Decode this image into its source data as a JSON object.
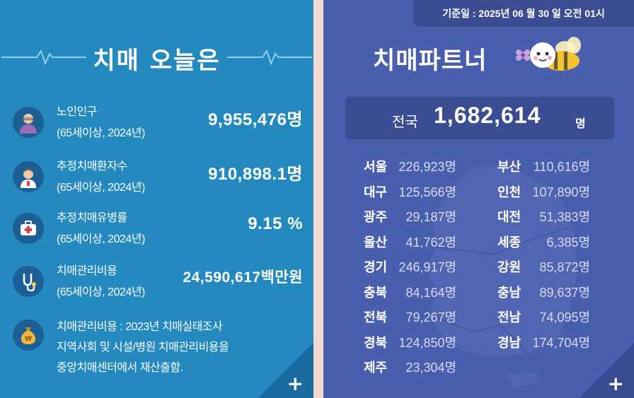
{
  "left": {
    "title": "치매 오늘은",
    "stats": [
      {
        "label": "노인인구",
        "sub": "(65세이상, 2024년)",
        "value": "9,955,476명",
        "icon": "elderly-person-icon"
      },
      {
        "label": "추정치매환자수",
        "sub": "(65세이상, 2024년)",
        "value": "910,898.1명",
        "icon": "patient-icon"
      },
      {
        "label": "추정치매유병률",
        "sub": "(65세이상, 2024년)",
        "value": "9.15 %",
        "icon": "medical-kit-icon"
      },
      {
        "label": "치매관리비용",
        "sub": "(65세이상, 2024년)",
        "value": "24,590,617백만원",
        "icon": "stethoscope-icon"
      }
    ],
    "note": {
      "line1": "치매관리비용 : 2023년 치매실태조사",
      "line2": "지역사회 및 시설/병원 치매관리비용을",
      "line3": "중앙치매센터에서 재산출함.",
      "icon": "money-bag-icon"
    },
    "more": "+"
  },
  "right": {
    "date": "기준일 : 2025년 06 월 30 일 오전 01시",
    "title": "치매파트너",
    "total": {
      "label": "전국",
      "value": "1,682,614",
      "unit": "명"
    },
    "regions_left": [
      {
        "name": "서울",
        "value": "226,923명"
      },
      {
        "name": "대구",
        "value": "125,566명"
      },
      {
        "name": "광주",
        "value": "29,187명"
      },
      {
        "name": "울산",
        "value": "41,762명"
      },
      {
        "name": "경기",
        "value": "246,917명"
      },
      {
        "name": "충북",
        "value": "84,164명"
      },
      {
        "name": "전북",
        "value": "79,267명"
      },
      {
        "name": "경북",
        "value": "124,850명"
      },
      {
        "name": "제주",
        "value": "23,304명"
      }
    ],
    "regions_right": [
      {
        "name": "부산",
        "value": "110,616명"
      },
      {
        "name": "인천",
        "value": "107,890명"
      },
      {
        "name": "대전",
        "value": "51,383명"
      },
      {
        "name": "세종",
        "value": "6,385명"
      },
      {
        "name": "강원",
        "value": "85,872명"
      },
      {
        "name": "충남",
        "value": "89,637명"
      },
      {
        "name": "전남",
        "value": "74,095명"
      },
      {
        "name": "경남",
        "value": "174,704명"
      }
    ],
    "more": "+"
  },
  "colors": {
    "left_bg": "#2389bf",
    "right_bg": "#4a5eae",
    "icon_bg": "#1c5f95",
    "box_bg": "#3b4d92"
  }
}
